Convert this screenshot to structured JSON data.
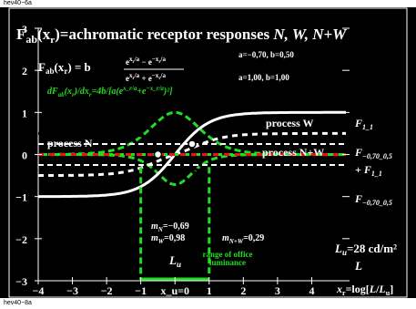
{
  "header_code": "hev40−6a",
  "footer_code": "hev40−8a",
  "title": {
    "main": "F",
    "sub": "ab",
    "rest1": "(x",
    "rest1sub": "r",
    "rest2": ")=achromatic receptor responses ",
    "italic": "N, W, N+W"
  },
  "formula": {
    "lhs": "F",
    "lhs_sub": "ab",
    "lhs_rest": "(x",
    "lhs_rest_sub": "r",
    "lhs_end": ") = b",
    "num": "e^{x_r/a} − e^{−x_r/a}",
    "den": "e^{x_r/a} + e^{−x_r/a}"
  },
  "derivative": "dF_ab(x_r)/dx_r=4b/[a(e^{x_r/a}+e^{−x_r/a})²]",
  "params": [
    "a=−0,70, b=0,50",
    "a=1,00, b=1,00"
  ],
  "labels": {
    "process_w": "process W",
    "process_nw": "process N+W",
    "process_n": "process N",
    "f11_top": "F",
    "f11_top_sub": "1_1",
    "f_0705_mid": "F",
    "f_0705_mid_sub": "−0,70_0,5",
    "plus_f11": "+ F",
    "plus_f11_sub": "1_1",
    "f_0705_bot": "F",
    "f_0705_bot_sub": "−0,70_0,5",
    "mn": "m",
    "mn_sub": "N",
    "mn_val": "=−0,69",
    "mw": "m",
    "mw_sub": "W",
    "mw_val": "=0,98",
    "mnw": "m",
    "mnw_sub": "N+W",
    "mnw_val": "=0,29",
    "lu": "L",
    "lu_sub": "u",
    "range": [
      "range of office",
      "luminance"
    ],
    "lum": "L",
    "lum_sub": "u",
    "lum_val": "=28 cd/m²",
    "axis_l": "L"
  },
  "colors": {
    "white": "#ffffff",
    "green": "#22dd22",
    "red": "#ee1111",
    "black": "#000000",
    "bg": "#000000"
  },
  "chart_data": {
    "type": "line",
    "xlabel": "x_r=log[L/L_u]",
    "xlim": [
      -4,
      5
    ],
    "ylim": [
      -3,
      3
    ],
    "x_ticks": [
      "−4",
      "−3",
      "−2",
      "−1",
      "x_u=0",
      "1",
      "2",
      "3",
      "4"
    ],
    "y_ticks": [
      "3",
      "2",
      "1",
      "0",
      "−1",
      "−2",
      "−3"
    ],
    "series": [
      {
        "name": "process W",
        "type": "F_1_1",
        "a": 1.0,
        "b": 1.0,
        "color": "white"
      },
      {
        "name": "process N",
        "type": "F_-0,70_0,5",
        "a": -0.7,
        "b": 0.5,
        "color": "white"
      },
      {
        "name": "process N+W",
        "type": "sum",
        "color": "white-dashed"
      },
      {
        "name": "dW/dx",
        "type": "derivative",
        "a": 1.0,
        "b": 1.0,
        "color": "green-dashed"
      },
      {
        "name": "dN/dx",
        "type": "derivative",
        "a": -0.7,
        "b": 0.5,
        "color": "green-dashed"
      }
    ],
    "m_values": {
      "m_N": -0.69,
      "m_W": 0.98,
      "m_N+W": 0.29
    },
    "range_of_office_luminance": [
      -1,
      1
    ]
  }
}
